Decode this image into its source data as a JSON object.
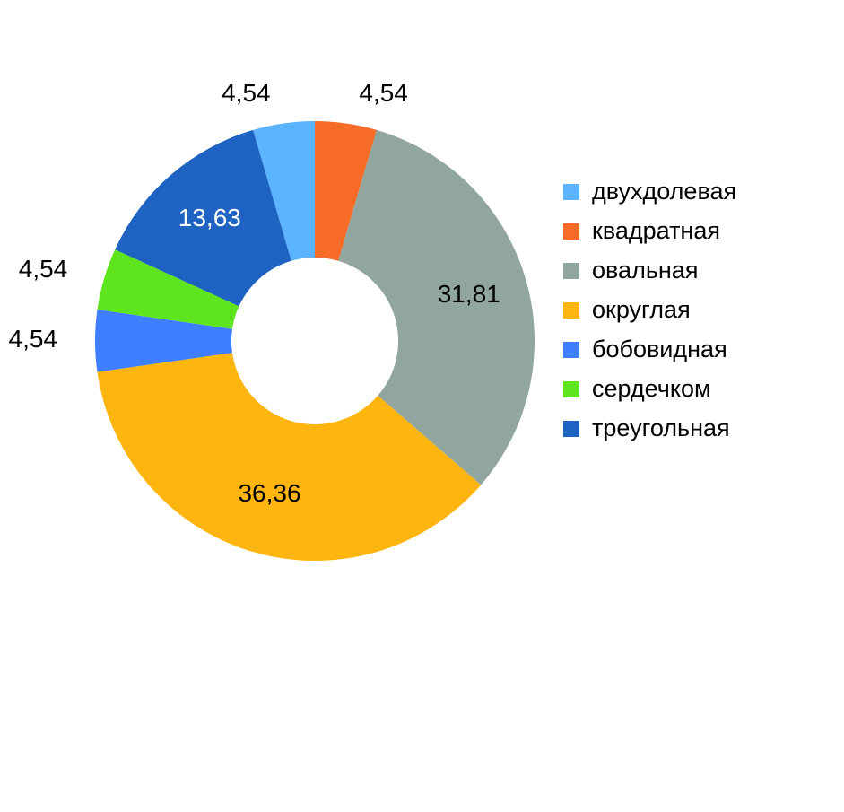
{
  "chart_data": {
    "type": "donut",
    "categories": [
      "двухдолевая",
      "квадратная",
      "овальная",
      "округлая",
      "бобовидная",
      "сердечком",
      "треугольная"
    ],
    "values": [
      4.54,
      4.54,
      31.81,
      36.36,
      4.54,
      4.54,
      13.63
    ],
    "value_labels": [
      "4,54",
      "4,54",
      "31,81",
      "36,36",
      "4,54",
      "4,54",
      "13,63"
    ],
    "colors": [
      "#5cb3ff",
      "#f66b28",
      "#92a6a0",
      "#ffb510",
      "#3e7eff",
      "#5fe51e",
      "#1e63c1"
    ],
    "legend": "right"
  }
}
